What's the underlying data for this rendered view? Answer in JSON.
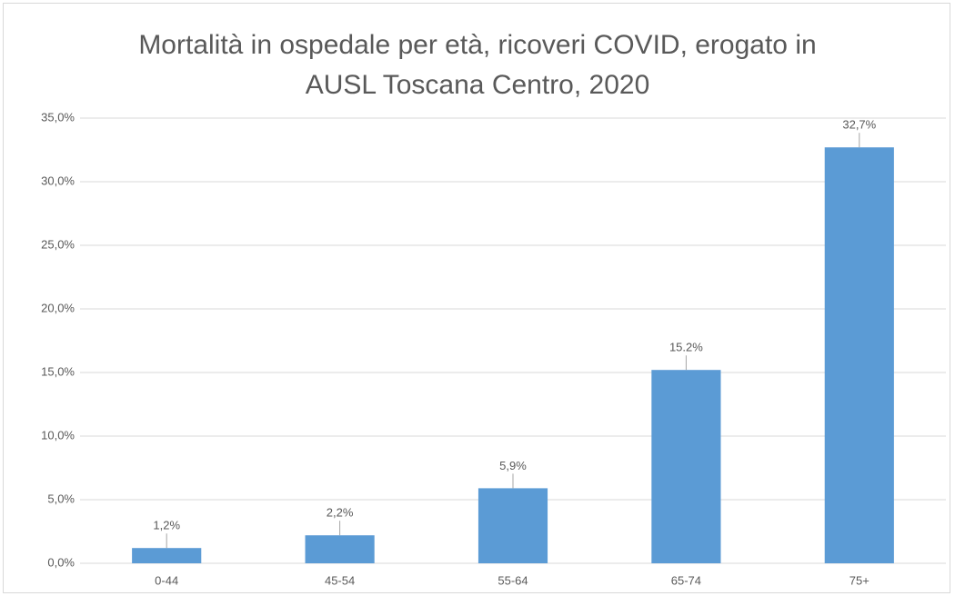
{
  "chart_data": {
    "type": "bar",
    "title": "Mortalità in ospedale per età, ricoveri COVID, erogato in AUSL Toscana Centro, 2020",
    "categories": [
      "0-44",
      "45-54",
      "55-64",
      "65-74",
      "75+"
    ],
    "values": [
      1.2,
      2.2,
      5.9,
      15.2,
      32.7
    ],
    "value_labels": [
      "1,2%",
      "2,2%",
      "5,9%",
      "15.2%",
      "32,7%"
    ],
    "color": "#5b9bd5",
    "ylim": [
      0,
      35
    ],
    "yticks": [
      {
        "value": 0,
        "label": "0,0%"
      },
      {
        "value": 5,
        "label": "5,0%"
      },
      {
        "value": 10,
        "label": "10,0%"
      },
      {
        "value": 15,
        "label": "15,0%"
      },
      {
        "value": 20,
        "label": "20,0%"
      },
      {
        "value": 25,
        "label": "25,0%"
      },
      {
        "value": 30,
        "label": "30,0%"
      },
      {
        "value": 35,
        "label": "35,0%"
      }
    ],
    "grid": true
  }
}
